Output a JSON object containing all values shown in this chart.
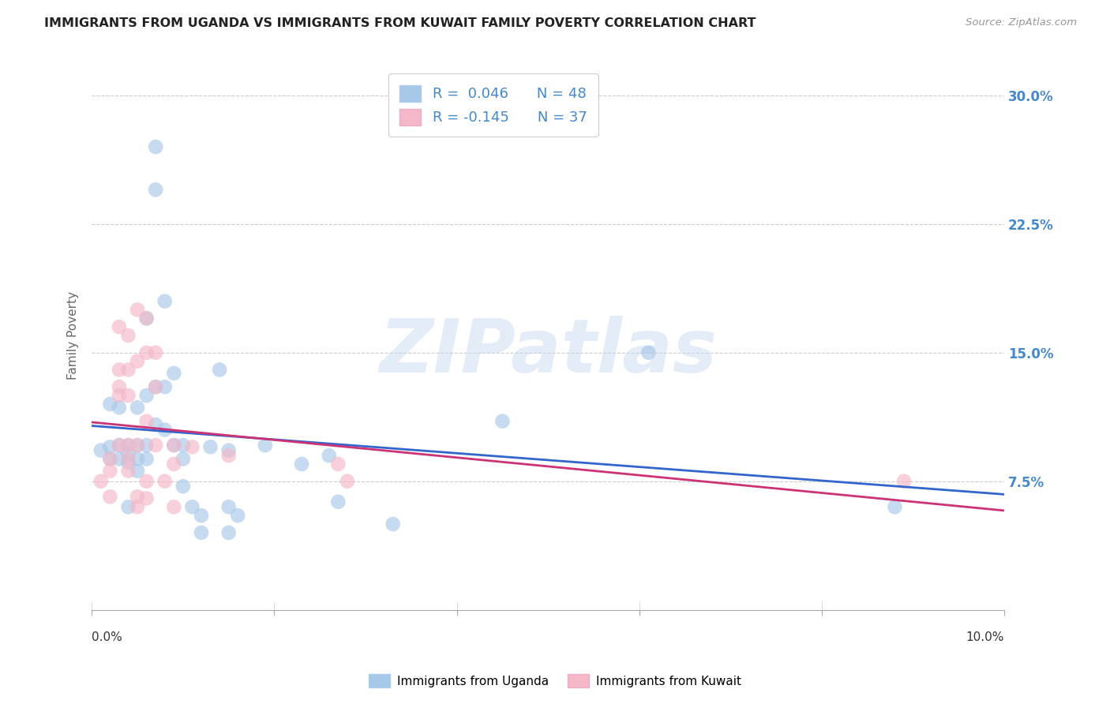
{
  "title": "IMMIGRANTS FROM UGANDA VS IMMIGRANTS FROM KUWAIT FAMILY POVERTY CORRELATION CHART",
  "source": "Source: ZipAtlas.com",
  "ylabel": "Family Poverty",
  "ytick_labels": [
    "7.5%",
    "15.0%",
    "22.5%",
    "30.0%"
  ],
  "ytick_values": [
    0.075,
    0.15,
    0.225,
    0.3
  ],
  "xlim": [
    0.0,
    0.1
  ],
  "ylim": [
    0.0,
    0.32
  ],
  "uganda_color": "#a8c8e8",
  "kuwait_color": "#f4b8c8",
  "uganda_line_color": "#3366cc",
  "kuwait_line_color": "#cc3377",
  "uganda_r": 0.046,
  "uganda_n": 48,
  "kuwait_r": -0.145,
  "kuwait_n": 37,
  "marker_size": 180,
  "marker_alpha": 0.65,
  "uganda_points": [
    [
      0.001,
      0.093
    ],
    [
      0.002,
      0.12
    ],
    [
      0.002,
      0.095
    ],
    [
      0.002,
      0.088
    ],
    [
      0.003,
      0.118
    ],
    [
      0.003,
      0.096
    ],
    [
      0.003,
      0.088
    ],
    [
      0.004,
      0.096
    ],
    [
      0.004,
      0.091
    ],
    [
      0.004,
      0.086
    ],
    [
      0.004,
      0.06
    ],
    [
      0.005,
      0.118
    ],
    [
      0.005,
      0.096
    ],
    [
      0.005,
      0.088
    ],
    [
      0.005,
      0.081
    ],
    [
      0.006,
      0.17
    ],
    [
      0.006,
      0.125
    ],
    [
      0.006,
      0.096
    ],
    [
      0.006,
      0.088
    ],
    [
      0.007,
      0.27
    ],
    [
      0.007,
      0.245
    ],
    [
      0.007,
      0.13
    ],
    [
      0.007,
      0.108
    ],
    [
      0.008,
      0.18
    ],
    [
      0.008,
      0.13
    ],
    [
      0.008,
      0.105
    ],
    [
      0.009,
      0.138
    ],
    [
      0.009,
      0.096
    ],
    [
      0.01,
      0.096
    ],
    [
      0.01,
      0.088
    ],
    [
      0.01,
      0.072
    ],
    [
      0.011,
      0.06
    ],
    [
      0.012,
      0.055
    ],
    [
      0.012,
      0.045
    ],
    [
      0.013,
      0.095
    ],
    [
      0.014,
      0.14
    ],
    [
      0.015,
      0.093
    ],
    [
      0.015,
      0.06
    ],
    [
      0.015,
      0.045
    ],
    [
      0.016,
      0.055
    ],
    [
      0.019,
      0.096
    ],
    [
      0.023,
      0.085
    ],
    [
      0.026,
      0.09
    ],
    [
      0.027,
      0.063
    ],
    [
      0.033,
      0.05
    ],
    [
      0.045,
      0.11
    ],
    [
      0.061,
      0.15
    ],
    [
      0.088,
      0.06
    ]
  ],
  "kuwait_points": [
    [
      0.001,
      0.075
    ],
    [
      0.002,
      0.088
    ],
    [
      0.002,
      0.081
    ],
    [
      0.002,
      0.066
    ],
    [
      0.003,
      0.165
    ],
    [
      0.003,
      0.14
    ],
    [
      0.003,
      0.13
    ],
    [
      0.003,
      0.125
    ],
    [
      0.003,
      0.096
    ],
    [
      0.004,
      0.16
    ],
    [
      0.004,
      0.14
    ],
    [
      0.004,
      0.125
    ],
    [
      0.004,
      0.096
    ],
    [
      0.004,
      0.088
    ],
    [
      0.004,
      0.081
    ],
    [
      0.005,
      0.175
    ],
    [
      0.005,
      0.145
    ],
    [
      0.005,
      0.096
    ],
    [
      0.005,
      0.066
    ],
    [
      0.005,
      0.06
    ],
    [
      0.006,
      0.17
    ],
    [
      0.006,
      0.15
    ],
    [
      0.006,
      0.11
    ],
    [
      0.006,
      0.075
    ],
    [
      0.006,
      0.065
    ],
    [
      0.007,
      0.15
    ],
    [
      0.007,
      0.13
    ],
    [
      0.007,
      0.096
    ],
    [
      0.008,
      0.075
    ],
    [
      0.009,
      0.096
    ],
    [
      0.009,
      0.085
    ],
    [
      0.009,
      0.06
    ],
    [
      0.011,
      0.095
    ],
    [
      0.015,
      0.09
    ],
    [
      0.027,
      0.085
    ],
    [
      0.028,
      0.075
    ],
    [
      0.089,
      0.075
    ]
  ]
}
